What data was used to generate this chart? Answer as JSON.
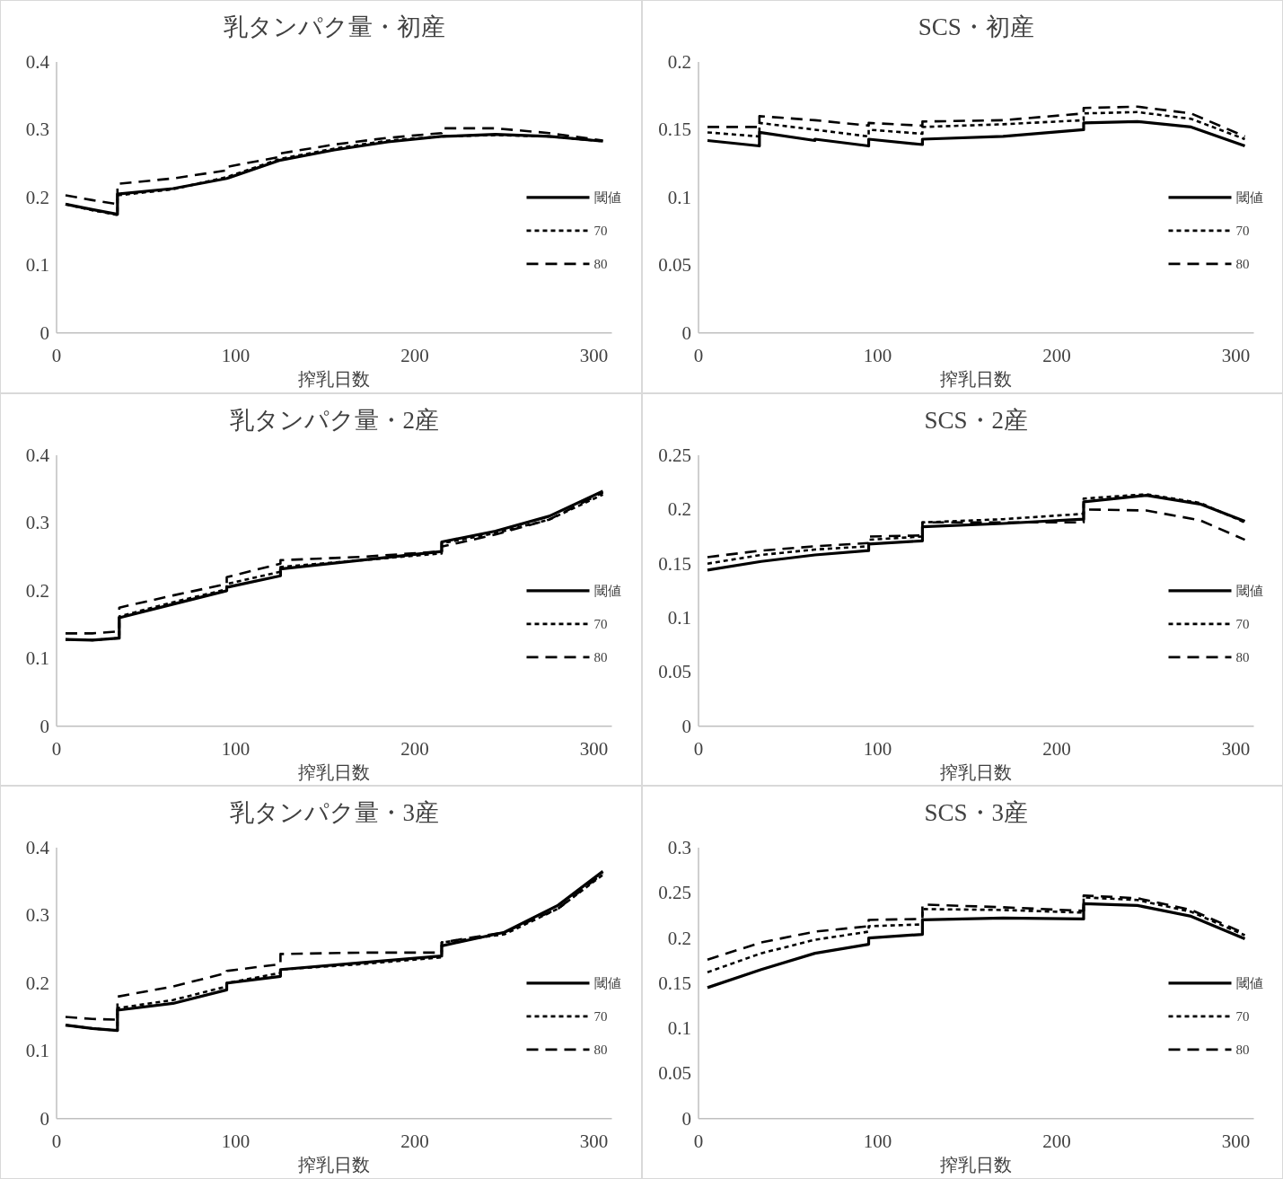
{
  "chart_data": [
    {
      "type": "line",
      "title": "乳タンパク量・初産",
      "xlabel": "搾乳日数",
      "xlim": [
        0,
        310
      ],
      "xticks": [
        0,
        100,
        200,
        300
      ],
      "ylim": [
        0,
        0.4
      ],
      "yticks": [
        0,
        0.1,
        0.2,
        0.3,
        0.4
      ],
      "legend": "right",
      "series": [
        {
          "name": "閾値",
          "color": "#000000",
          "line_style": "solid",
          "x": [
            5,
            20,
            34,
            34,
            65,
            95,
            125,
            155,
            185,
            215,
            245,
            275,
            305
          ],
          "values": [
            0.19,
            0.182,
            0.175,
            0.205,
            0.213,
            0.228,
            0.255,
            0.27,
            0.282,
            0.29,
            0.293,
            0.29,
            0.283
          ]
        },
        {
          "name": "70",
          "color": "#000000",
          "line_style": "dotted",
          "x": [
            5,
            20,
            34,
            34,
            65,
            95,
            125,
            155,
            185,
            215,
            245,
            275,
            305
          ],
          "values": [
            0.19,
            0.181,
            0.174,
            0.203,
            0.212,
            0.23,
            0.257,
            0.272,
            0.284,
            0.29,
            0.292,
            0.29,
            0.283
          ]
        },
        {
          "name": "80",
          "color": "#000000",
          "line_style": "dashed",
          "x": [
            5,
            20,
            34,
            34,
            65,
            95,
            95,
            125,
            125,
            155,
            185,
            215,
            215,
            245,
            275,
            305
          ],
          "values": [
            0.203,
            0.196,
            0.19,
            0.22,
            0.228,
            0.24,
            0.245,
            0.26,
            0.265,
            0.278,
            0.288,
            0.295,
            0.302,
            0.302,
            0.295,
            0.284
          ]
        }
      ]
    },
    {
      "type": "line",
      "title": "SCS・初産",
      "xlabel": "搾乳日数",
      "xlim": [
        0,
        310
      ],
      "xticks": [
        0,
        100,
        200,
        300
      ],
      "ylim": [
        0,
        0.2
      ],
      "yticks": [
        0,
        0.05,
        0.1,
        0.15,
        0.2
      ],
      "legend": "right",
      "series": [
        {
          "name": "閾値",
          "color": "#000000",
          "line_style": "solid",
          "x": [
            5,
            34,
            34,
            65,
            65,
            95,
            95,
            125,
            125,
            170,
            215,
            215,
            245,
            275,
            305
          ],
          "values": [
            0.142,
            0.138,
            0.148,
            0.142,
            0.143,
            0.138,
            0.143,
            0.139,
            0.143,
            0.145,
            0.15,
            0.155,
            0.156,
            0.152,
            0.138
          ]
        },
        {
          "name": "70",
          "color": "#000000",
          "line_style": "dotted",
          "x": [
            5,
            34,
            34,
            65,
            65,
            95,
            95,
            125,
            125,
            170,
            215,
            215,
            245,
            275,
            305
          ],
          "values": [
            0.148,
            0.145,
            0.155,
            0.15,
            0.15,
            0.145,
            0.15,
            0.147,
            0.152,
            0.154,
            0.157,
            0.162,
            0.163,
            0.158,
            0.143
          ]
        },
        {
          "name": "80",
          "color": "#000000",
          "line_style": "dashed",
          "x": [
            5,
            34,
            34,
            65,
            95,
            95,
            125,
            125,
            170,
            215,
            215,
            245,
            275,
            305
          ],
          "values": [
            0.152,
            0.152,
            0.16,
            0.157,
            0.153,
            0.155,
            0.153,
            0.156,
            0.157,
            0.162,
            0.166,
            0.167,
            0.162,
            0.145
          ]
        }
      ]
    },
    {
      "type": "line",
      "title": "乳タンパク量・2産",
      "xlabel": "搾乳日数",
      "xlim": [
        0,
        310
      ],
      "xticks": [
        0,
        100,
        200,
        300
      ],
      "ylim": [
        0,
        0.4
      ],
      "yticks": [
        0,
        0.1,
        0.2,
        0.3,
        0.4
      ],
      "legend": "right",
      "series": [
        {
          "name": "閾値",
          "color": "#000000",
          "line_style": "solid",
          "x": [
            5,
            20,
            35,
            35,
            65,
            95,
            95,
            125,
            125,
            170,
            215,
            215,
            245,
            275,
            305
          ],
          "values": [
            0.128,
            0.127,
            0.13,
            0.16,
            0.18,
            0.2,
            0.205,
            0.222,
            0.232,
            0.245,
            0.258,
            0.272,
            0.288,
            0.31,
            0.347
          ]
        },
        {
          "name": "70",
          "color": "#000000",
          "line_style": "dotted",
          "x": [
            5,
            20,
            35,
            35,
            65,
            95,
            95,
            125,
            125,
            170,
            215,
            215,
            245,
            275,
            305
          ],
          "values": [
            0.128,
            0.127,
            0.13,
            0.162,
            0.183,
            0.202,
            0.21,
            0.228,
            0.235,
            0.245,
            0.255,
            0.27,
            0.285,
            0.305,
            0.342
          ]
        },
        {
          "name": "80",
          "color": "#000000",
          "line_style": "dashed",
          "x": [
            5,
            20,
            35,
            35,
            65,
            95,
            95,
            125,
            125,
            170,
            215,
            215,
            245,
            275,
            305
          ],
          "values": [
            0.137,
            0.137,
            0.14,
            0.175,
            0.193,
            0.21,
            0.22,
            0.24,
            0.245,
            0.25,
            0.258,
            0.265,
            0.283,
            0.305,
            0.345
          ]
        }
      ]
    },
    {
      "type": "line",
      "title": "SCS・2産",
      "xlabel": "搾乳日数",
      "xlim": [
        0,
        310
      ],
      "xticks": [
        0,
        100,
        200,
        300
      ],
      "ylim": [
        0,
        0.25
      ],
      "yticks": [
        0,
        0.05,
        0.1,
        0.15,
        0.2,
        0.25
      ],
      "legend": "right",
      "series": [
        {
          "name": "閾値",
          "color": "#000000",
          "line_style": "solid",
          "x": [
            5,
            35,
            65,
            95,
            95,
            125,
            125,
            170,
            215,
            215,
            250,
            280,
            305
          ],
          "values": [
            0.144,
            0.152,
            0.158,
            0.162,
            0.168,
            0.171,
            0.184,
            0.187,
            0.191,
            0.207,
            0.213,
            0.205,
            0.189
          ]
        },
        {
          "name": "70",
          "color": "#000000",
          "line_style": "dotted",
          "x": [
            5,
            35,
            65,
            95,
            95,
            125,
            125,
            170,
            215,
            215,
            250,
            280,
            305
          ],
          "values": [
            0.15,
            0.158,
            0.163,
            0.166,
            0.172,
            0.175,
            0.188,
            0.191,
            0.196,
            0.21,
            0.214,
            0.206,
            0.188
          ]
        },
        {
          "name": "80",
          "color": "#000000",
          "line_style": "dashed",
          "x": [
            5,
            35,
            65,
            95,
            95,
            125,
            125,
            170,
            215,
            215,
            250,
            280,
            305
          ],
          "values": [
            0.156,
            0.162,
            0.166,
            0.169,
            0.175,
            0.176,
            0.188,
            0.188,
            0.188,
            0.2,
            0.199,
            0.19,
            0.172
          ]
        }
      ]
    },
    {
      "type": "line",
      "title": "乳タンパク量・3産",
      "xlabel": "搾乳日数",
      "xlim": [
        0,
        310
      ],
      "xticks": [
        0,
        100,
        200,
        300
      ],
      "ylim": [
        0,
        0.4
      ],
      "yticks": [
        0,
        0.1,
        0.2,
        0.3,
        0.4
      ],
      "legend": "right",
      "series": [
        {
          "name": "閾値",
          "color": "#000000",
          "line_style": "solid",
          "x": [
            5,
            20,
            34,
            34,
            65,
            95,
            95,
            125,
            125,
            170,
            215,
            215,
            250,
            280,
            305
          ],
          "values": [
            0.138,
            0.133,
            0.13,
            0.16,
            0.17,
            0.19,
            0.2,
            0.21,
            0.22,
            0.23,
            0.24,
            0.255,
            0.275,
            0.315,
            0.365
          ]
        },
        {
          "name": "70",
          "color": "#000000",
          "line_style": "dotted",
          "x": [
            5,
            20,
            34,
            34,
            65,
            95,
            95,
            125,
            125,
            170,
            215,
            215,
            250,
            280,
            305
          ],
          "values": [
            0.138,
            0.133,
            0.13,
            0.163,
            0.175,
            0.195,
            0.2,
            0.215,
            0.22,
            0.228,
            0.238,
            0.26,
            0.272,
            0.31,
            0.36
          ]
        },
        {
          "name": "80",
          "color": "#000000",
          "line_style": "dashed",
          "x": [
            5,
            20,
            34,
            34,
            65,
            95,
            95,
            125,
            125,
            170,
            215,
            215,
            250,
            280,
            305
          ],
          "values": [
            0.15,
            0.147,
            0.146,
            0.18,
            0.195,
            0.215,
            0.218,
            0.228,
            0.243,
            0.245,
            0.245,
            0.26,
            0.275,
            0.31,
            0.362
          ]
        }
      ]
    },
    {
      "type": "line",
      "title": "SCS・3産",
      "xlabel": "搾乳日数",
      "xlim": [
        0,
        310
      ],
      "xticks": [
        0,
        100,
        200,
        300
      ],
      "ylim": [
        0,
        0.3
      ],
      "yticks": [
        0,
        0.05,
        0.1,
        0.15,
        0.2,
        0.25,
        0.3
      ],
      "legend": "right",
      "series": [
        {
          "name": "閾値",
          "color": "#000000",
          "line_style": "solid",
          "x": [
            5,
            35,
            65,
            95,
            95,
            125,
            125,
            170,
            215,
            215,
            245,
            275,
            305
          ],
          "values": [
            0.145,
            0.165,
            0.183,
            0.193,
            0.2,
            0.204,
            0.22,
            0.222,
            0.221,
            0.238,
            0.236,
            0.224,
            0.199
          ]
        },
        {
          "name": "70",
          "color": "#000000",
          "line_style": "dotted",
          "x": [
            5,
            35,
            65,
            95,
            95,
            125,
            125,
            170,
            215,
            215,
            245,
            275,
            305
          ],
          "values": [
            0.162,
            0.183,
            0.198,
            0.207,
            0.213,
            0.215,
            0.232,
            0.231,
            0.228,
            0.245,
            0.242,
            0.229,
            0.203
          ]
        },
        {
          "name": "80",
          "color": "#000000",
          "line_style": "dashed",
          "x": [
            5,
            35,
            65,
            95,
            95,
            125,
            125,
            170,
            215,
            215,
            245,
            275,
            305
          ],
          "values": [
            0.176,
            0.195,
            0.207,
            0.213,
            0.22,
            0.221,
            0.237,
            0.234,
            0.23,
            0.247,
            0.244,
            0.231,
            0.205
          ]
        }
      ]
    }
  ]
}
